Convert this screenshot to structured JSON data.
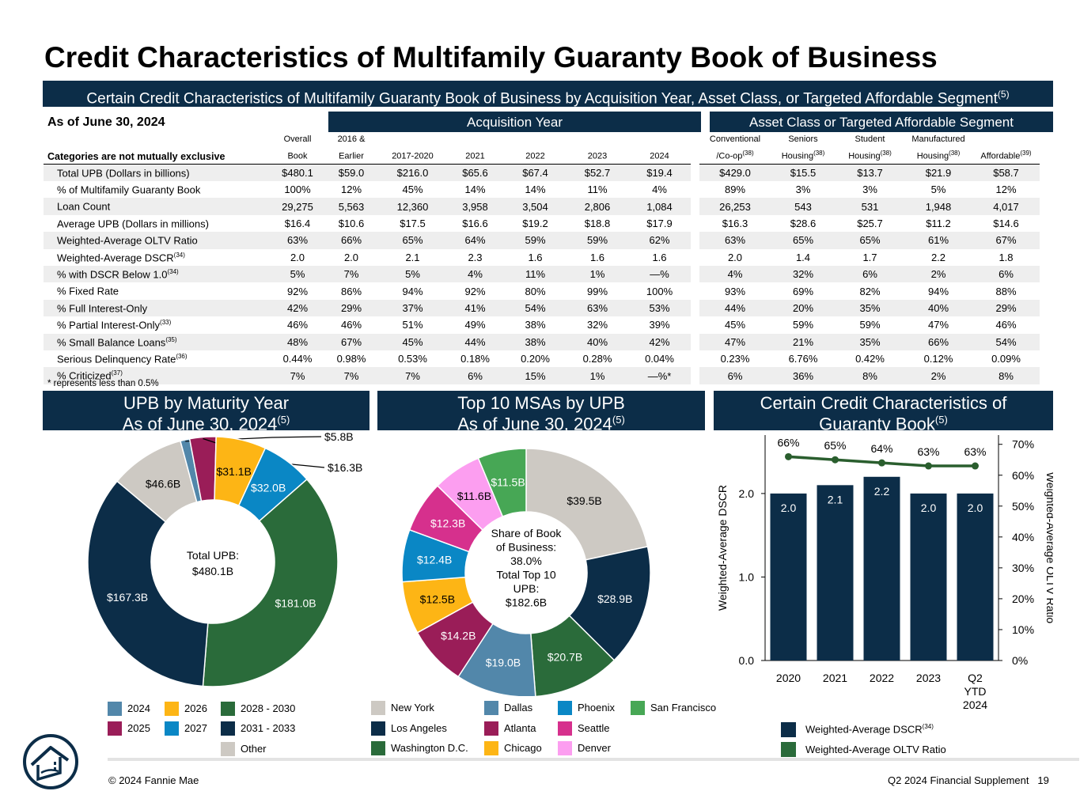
{
  "title": "Credit Characteristics of Multifamily Guaranty Book of Business",
  "subtitle": "Certain Credit Characteristics of Multifamily Guaranty Book of Business by Acquisition Year, Asset Class, or Targeted Affordable Segment",
  "subtitle_note": "(5)",
  "table": {
    "as_of": "As of June 30, 2024",
    "group1": "Acquisition Year",
    "group2": "Asset Class or Targeted Affordable Segment",
    "category_header": "Categories are not mutually exclusive",
    "columns": [
      {
        "l1": "Overall",
        "l2": "Book",
        "n1": "",
        "n2": ""
      },
      {
        "l1": "2016 &",
        "l2": "Earlier",
        "n1": "",
        "n2": ""
      },
      {
        "l1": "",
        "l2": "2017-2020",
        "n1": "",
        "n2": ""
      },
      {
        "l1": "",
        "l2": "2021",
        "n1": "",
        "n2": ""
      },
      {
        "l1": "",
        "l2": "2022",
        "n1": "",
        "n2": ""
      },
      {
        "l1": "",
        "l2": "2023",
        "n1": "",
        "n2": ""
      },
      {
        "l1": "",
        "l2": "2024",
        "n1": "",
        "n2": ""
      },
      {
        "l1": "Conventional",
        "l2": "/Co-op",
        "n1": "",
        "n2": "(38)"
      },
      {
        "l1": "Seniors",
        "l2": "Housing",
        "n1": "",
        "n2": "(38)"
      },
      {
        "l1": "Student",
        "l2": "Housing",
        "n1": "",
        "n2": "(38)"
      },
      {
        "l1": "Manufactured",
        "l2": "Housing",
        "n1": "",
        "n2": "(38)"
      },
      {
        "l1": "",
        "l2": "Affordable",
        "n1": "",
        "n2": "(39)"
      }
    ],
    "rows": [
      {
        "label": "Total UPB (Dollars in billions)",
        "note": "",
        "values": [
          "$480.1",
          "$59.0",
          "$216.0",
          "$65.6",
          "$67.4",
          "$52.7",
          "$19.4",
          "$429.0",
          "$15.5",
          "$13.7",
          "$21.9",
          "$58.7"
        ]
      },
      {
        "label": "% of Multifamily Guaranty Book",
        "note": "",
        "values": [
          "100%",
          "12%",
          "45%",
          "14%",
          "14%",
          "11%",
          "4%",
          "89%",
          "3%",
          "3%",
          "5%",
          "12%"
        ]
      },
      {
        "label": "Loan Count",
        "note": "",
        "values": [
          "29,275",
          "5,563",
          "12,360",
          "3,958",
          "3,504",
          "2,806",
          "1,084",
          "26,253",
          "543",
          "531",
          "1,948",
          "4,017"
        ]
      },
      {
        "label": "Average UPB (Dollars in millions)",
        "note": "",
        "values": [
          "$16.4",
          "$10.6",
          "$17.5",
          "$16.6",
          "$19.2",
          "$18.8",
          "$17.9",
          "$16.3",
          "$28.6",
          "$25.7",
          "$11.2",
          "$14.6"
        ]
      },
      {
        "label": "Weighted-Average OLTV Ratio",
        "note": "",
        "values": [
          "63%",
          "66%",
          "65%",
          "64%",
          "59%",
          "59%",
          "62%",
          "63%",
          "65%",
          "65%",
          "61%",
          "67%"
        ]
      },
      {
        "label": "Weighted-Average DSCR",
        "note": "(34)",
        "values": [
          "2.0",
          "2.0",
          "2.1",
          "2.3",
          "1.6",
          "1.6",
          "1.6",
          "2.0",
          "1.4",
          "1.7",
          "2.2",
          "1.8"
        ]
      },
      {
        "label": "% with DSCR Below 1.0",
        "note": "(34)",
        "values": [
          "5%",
          "7%",
          "5%",
          "4%",
          "11%",
          "1%",
          "—%",
          "4%",
          "32%",
          "6%",
          "2%",
          "6%"
        ]
      },
      {
        "label": "% Fixed Rate",
        "note": "",
        "values": [
          "92%",
          "86%",
          "94%",
          "92%",
          "80%",
          "99%",
          "100%",
          "93%",
          "69%",
          "82%",
          "94%",
          "88%"
        ]
      },
      {
        "label": "% Full Interest-Only",
        "note": "",
        "values": [
          "42%",
          "29%",
          "37%",
          "41%",
          "54%",
          "63%",
          "53%",
          "44%",
          "20%",
          "35%",
          "40%",
          "29%"
        ]
      },
      {
        "label": "% Partial Interest-Only",
        "note": "(33)",
        "values": [
          "46%",
          "46%",
          "51%",
          "49%",
          "38%",
          "32%",
          "39%",
          "45%",
          "59%",
          "59%",
          "47%",
          "46%"
        ]
      },
      {
        "label": "% Small Balance Loans",
        "note": "(35)",
        "values": [
          "48%",
          "67%",
          "45%",
          "44%",
          "38%",
          "40%",
          "42%",
          "47%",
          "21%",
          "35%",
          "66%",
          "54%"
        ]
      },
      {
        "label": "Serious Delinquency Rate",
        "note": "(36)",
        "values": [
          "0.44%",
          "0.98%",
          "0.53%",
          "0.18%",
          "0.20%",
          "0.28%",
          "0.04%",
          "0.23%",
          "6.76%",
          "0.42%",
          "0.12%",
          "0.09%"
        ]
      },
      {
        "label": "% Criticized",
        "note": "(37)",
        "values": [
          "7%",
          "7%",
          "7%",
          "6%",
          "15%",
          "1%",
          "—%*",
          "6%",
          "36%",
          "8%",
          "2%",
          "8%"
        ]
      }
    ],
    "footnote": "*  represents less than 0.5%"
  },
  "panels": {
    "maturity": {
      "line1": "UPB by Maturity Year",
      "line2": "As of June 30, 2024",
      "note": "(5)"
    },
    "msa": {
      "line1": "Top 10 MSAs by UPB",
      "line2": "As of June 30, 2024",
      "note": "(5)"
    },
    "credit": {
      "line1": "Certain Credit Characteristics of",
      "line2": "Guaranty Book",
      "note": "(5)"
    }
  },
  "colors": {
    "navy": "#0c2d48",
    "dark_green": "#2a6b3a",
    "gray": "#cdc9c3",
    "steel_blue": "#5287aa",
    "maroon": "#9a1d58",
    "orange": "#fdb515",
    "cyan": "#0a87c5",
    "pink": "#d6308d",
    "light_pink": "#fc9ef0",
    "green": "#47a755",
    "line_green": "#2a5e2e"
  },
  "chart_data": [
    {
      "type": "pie",
      "title": "UPB by Maturity Year",
      "center_text": [
        "Total UPB:",
        "$480.1B"
      ],
      "slices": [
        {
          "name": "Other",
          "value": 46.6,
          "label": "$46.6B",
          "color": "#cdc9c3"
        },
        {
          "name": "2024",
          "value": 5.8,
          "label": "$5.8B",
          "color": "#5287aa"
        },
        {
          "name": "2025",
          "value": 16.3,
          "label": "$16.3B",
          "color": "#9a1d58"
        },
        {
          "name": "2026",
          "value": 31.1,
          "label": "$31.1B",
          "color": "#fdb515"
        },
        {
          "name": "2027",
          "value": 32.0,
          "label": "$32.0B",
          "color": "#0a87c5"
        },
        {
          "name": "2028 - 2030",
          "value": 181.0,
          "label": "$181.0B",
          "color": "#2a6b3a"
        },
        {
          "name": "2031 - 2033",
          "value": 167.3,
          "label": "$167.3B",
          "color": "#0c2d48"
        }
      ],
      "legend": [
        {
          "name": "2024",
          "color": "#5287aa"
        },
        {
          "name": "2026",
          "color": "#fdb515"
        },
        {
          "name": "2028 - 2030",
          "color": "#2a6b3a"
        },
        {
          "name": "2025",
          "color": "#9a1d58"
        },
        {
          "name": "2027",
          "color": "#0a87c5"
        },
        {
          "name": "2031 - 2033",
          "color": "#0c2d48"
        },
        {
          "name": "Other",
          "color": "#cdc9c3"
        }
      ]
    },
    {
      "type": "pie",
      "title": "Top 10 MSAs by UPB",
      "center_text": [
        "Share of Book",
        "of Business:",
        "38.0%",
        "Total Top 10",
        "UPB:",
        "$182.6B"
      ],
      "slices": [
        {
          "name": "New York",
          "value": 39.5,
          "label": "$39.5B",
          "color": "#cdc9c3"
        },
        {
          "name": "Los Angeles",
          "value": 28.9,
          "label": "$28.9B",
          "color": "#0c2d48"
        },
        {
          "name": "Washington D.C.",
          "value": 20.7,
          "label": "$20.7B",
          "color": "#2a6b3a"
        },
        {
          "name": "Dallas",
          "value": 19.0,
          "label": "$19.0B",
          "color": "#5287aa"
        },
        {
          "name": "Atlanta",
          "value": 14.2,
          "label": "$14.2B",
          "color": "#9a1d58"
        },
        {
          "name": "Chicago",
          "value": 12.5,
          "label": "$12.5B",
          "color": "#fdb515"
        },
        {
          "name": "Phoenix",
          "value": 12.4,
          "label": "$12.4B",
          "color": "#0a87c5"
        },
        {
          "name": "Seattle",
          "value": 12.3,
          "label": "$12.3B",
          "color": "#d6308d"
        },
        {
          "name": "Denver",
          "value": 11.6,
          "label": "$11.6B",
          "color": "#fc9ef0"
        },
        {
          "name": "San Francisco",
          "value": 11.5,
          "label": "$11.5B",
          "color": "#47a755"
        }
      ],
      "legend": [
        {
          "name": "New York",
          "color": "#cdc9c3"
        },
        {
          "name": "Dallas",
          "color": "#5287aa"
        },
        {
          "name": "Phoenix",
          "color": "#0a87c5"
        },
        {
          "name": "San Francisco",
          "color": "#47a755"
        },
        {
          "name": "Los Angeles",
          "color": "#0c2d48"
        },
        {
          "name": "Atlanta",
          "color": "#9a1d58"
        },
        {
          "name": "Seattle",
          "color": "#d6308d"
        },
        {
          "name": "Washington D.C.",
          "color": "#2a6b3a"
        },
        {
          "name": "Chicago",
          "color": "#fdb515"
        },
        {
          "name": "Denver",
          "color": "#fc9ef0"
        }
      ]
    },
    {
      "type": "bar",
      "title": "Certain Credit Characteristics of Guaranty Book",
      "categories": [
        "2020",
        "2021",
        "2022",
        "2023",
        "Q2 YTD 2024"
      ],
      "category_lines": [
        [
          "2020"
        ],
        [
          "2021"
        ],
        [
          "2022"
        ],
        [
          "2023"
        ],
        [
          "Q2",
          "YTD",
          "2024"
        ]
      ],
      "series": [
        {
          "name": "Weighted-Average DSCR",
          "note": "(34)",
          "type": "bar",
          "axis": "left",
          "values": [
            2.0,
            2.1,
            2.2,
            2.0,
            2.0
          ],
          "labels": [
            "2.0",
            "2.1",
            "2.2",
            "2.0",
            "2.0"
          ],
          "color": "#0c2d48"
        },
        {
          "name": "Weighted-Average OLTV Ratio",
          "note": "",
          "type": "line",
          "axis": "right",
          "values": [
            66,
            65,
            64,
            63,
            63
          ],
          "labels": [
            "66%",
            "65%",
            "64%",
            "63%",
            "63%"
          ],
          "color": "#2a5e2e"
        }
      ],
      "ylabel": "Weighted-Average DSCR",
      "y2label": "Weighted-Average OLTV Ratio",
      "ylim": [
        0,
        2.7
      ],
      "yticks": [
        0.0,
        1.0,
        2.0
      ],
      "ytick_labels": [
        "0.0",
        "1.0",
        "2.0"
      ],
      "y2lim": [
        0,
        73
      ],
      "y2ticks": [
        0,
        10,
        20,
        30,
        40,
        50,
        60,
        70
      ],
      "y2tick_labels": [
        "0%",
        "10%",
        "20%",
        "30%",
        "40%",
        "50%",
        "60%",
        "70%"
      ]
    }
  ],
  "footer": {
    "copyright": "© 2024 Fannie Mae",
    "doc": "Q2 2024 Financial Supplement",
    "page": "19"
  }
}
